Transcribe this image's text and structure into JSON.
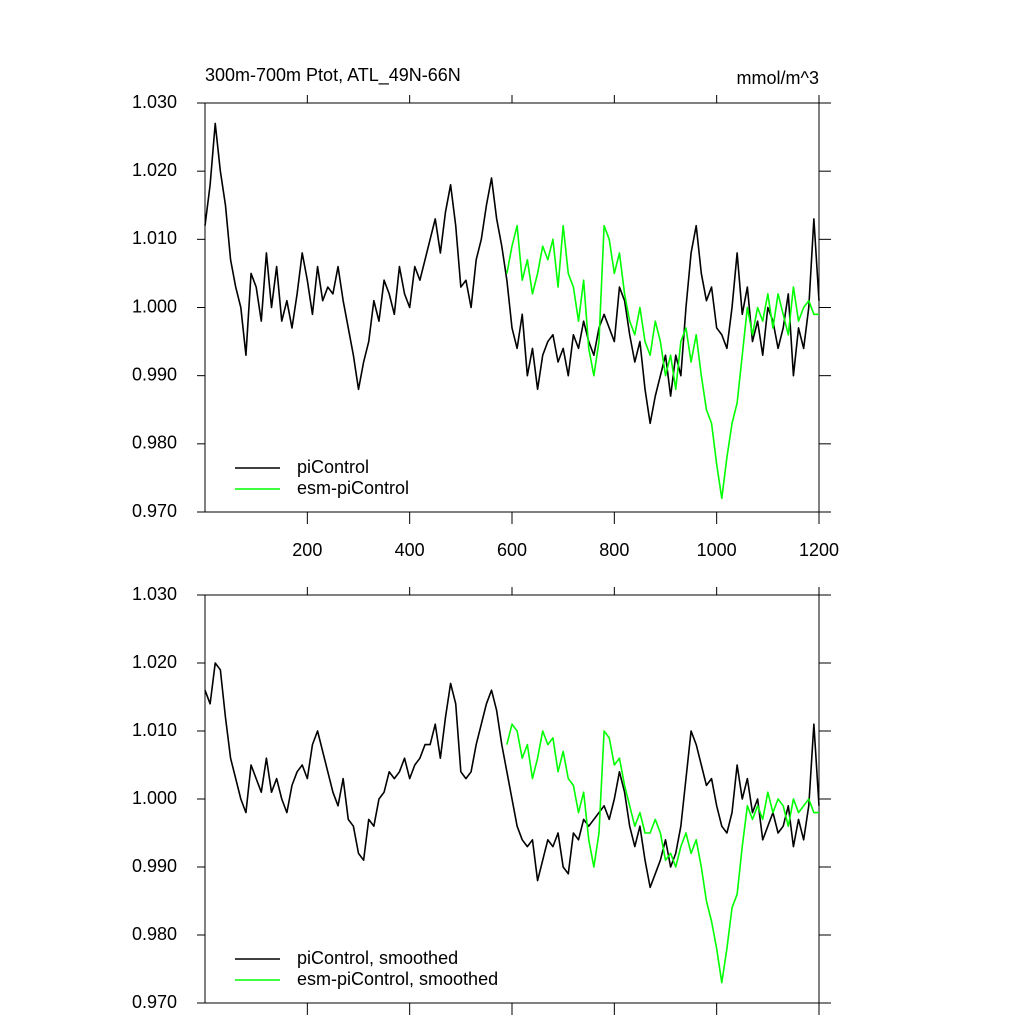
{
  "chart_data": [
    {
      "type": "line",
      "title": "300m-700m Ptot, ATL_49N-66N",
      "units": "mmol/m^3",
      "xlim": [
        0,
        1200
      ],
      "xticks": [
        200,
        400,
        600,
        800,
        1000,
        1200
      ],
      "xtick_labels": true,
      "ylim": [
        0.97,
        1.03
      ],
      "yticks": [
        {
          "value": 0.97,
          "label": "0.970"
        },
        {
          "value": 0.98,
          "label": "0.980"
        },
        {
          "value": 0.99,
          "label": "0.990"
        },
        {
          "value": 1.0,
          "label": "1.000"
        },
        {
          "value": 1.01,
          "label": "1.010"
        },
        {
          "value": 1.02,
          "label": "1.020"
        },
        {
          "value": 1.03,
          "label": "1.030"
        }
      ],
      "legend": "lower left",
      "series": [
        {
          "name": "piControl",
          "color": "#000000",
          "x": [
            0,
            10,
            20,
            30,
            40,
            50,
            60,
            70,
            80,
            90,
            100,
            110,
            120,
            130,
            140,
            150,
            160,
            170,
            180,
            190,
            200,
            210,
            220,
            230,
            240,
            250,
            260,
            270,
            280,
            290,
            300,
            310,
            320,
            330,
            340,
            350,
            360,
            370,
            380,
            390,
            400,
            410,
            420,
            430,
            440,
            450,
            460,
            470,
            480,
            490,
            500,
            510,
            520,
            530,
            540,
            550,
            560,
            570,
            580,
            590,
            600,
            610,
            620,
            630,
            640,
            650,
            660,
            670,
            680,
            690,
            700,
            710,
            720,
            730,
            740,
            750,
            760,
            770,
            780,
            790,
            800,
            810,
            820,
            830,
            840,
            850,
            860,
            870,
            880,
            890,
            900,
            910,
            920,
            930,
            940,
            950,
            960,
            970,
            980,
            990,
            1000,
            1010,
            1020,
            1030,
            1040,
            1050,
            1060,
            1070,
            1080,
            1090,
            1100,
            1110,
            1120,
            1130,
            1140,
            1150,
            1160,
            1170,
            1180,
            1190,
            1200
          ],
          "values": [
            1.012,
            1.018,
            1.027,
            1.02,
            1.015,
            1.007,
            1.003,
            1.0,
            0.993,
            1.005,
            1.003,
            0.998,
            1.008,
            1.0,
            1.006,
            0.998,
            1.001,
            0.997,
            1.002,
            1.008,
            1.004,
            0.999,
            1.006,
            1.001,
            1.003,
            1.002,
            1.006,
            1.001,
            0.997,
            0.993,
            0.988,
            0.992,
            0.995,
            1.001,
            0.998,
            1.004,
            1.002,
            0.999,
            1.006,
            1.002,
            1.0,
            1.006,
            1.004,
            1.007,
            1.01,
            1.013,
            1.008,
            1.014,
            1.018,
            1.012,
            1.003,
            1.004,
            1.0,
            1.007,
            1.01,
            1.015,
            1.019,
            1.013,
            1.009,
            1.004,
            0.997,
            0.994,
            0.999,
            0.99,
            0.994,
            0.988,
            0.993,
            0.995,
            0.996,
            0.992,
            0.994,
            0.99,
            0.996,
            0.994,
            0.998,
            0.995,
            0.993,
            0.997,
            0.999,
            0.997,
            0.995,
            1.003,
            1.001,
            0.996,
            0.992,
            0.995,
            0.988,
            0.983,
            0.987,
            0.99,
            0.993,
            0.987,
            0.993,
            0.99,
            1.0,
            1.008,
            1.012,
            1.005,
            1.001,
            1.003,
            0.997,
            0.996,
            0.994,
            1.0,
            1.008,
            0.999,
            1.003,
            0.995,
            0.998,
            0.993,
            1.0,
            0.998,
            0.994,
            0.997,
            1.002,
            0.99,
            0.997,
            0.994,
            1.0,
            1.013,
            1.001
          ]
        },
        {
          "name": "esm-piControl",
          "color": "#00ff00",
          "x": [
            590,
            600,
            610,
            620,
            630,
            640,
            650,
            660,
            670,
            680,
            690,
            700,
            710,
            720,
            730,
            740,
            750,
            760,
            770,
            780,
            790,
            800,
            810,
            820,
            830,
            840,
            850,
            860,
            870,
            880,
            890,
            900,
            910,
            920,
            930,
            940,
            950,
            960,
            970,
            980,
            990,
            1000,
            1010,
            1020,
            1030,
            1040,
            1050,
            1060,
            1070,
            1080,
            1090,
            1100,
            1110,
            1120,
            1130,
            1140,
            1150,
            1160,
            1170,
            1180,
            1190,
            1200
          ],
          "values": [
            1.005,
            1.009,
            1.012,
            1.004,
            1.007,
            1.002,
            1.005,
            1.009,
            1.007,
            1.01,
            1.003,
            1.012,
            1.005,
            1.003,
            0.998,
            1.004,
            0.994,
            0.99,
            0.995,
            1.012,
            1.01,
            1.005,
            1.008,
            1.002,
            0.998,
            0.996,
            1.0,
            0.995,
            0.993,
            0.998,
            0.995,
            0.99,
            0.993,
            0.988,
            0.995,
            0.997,
            0.992,
            0.996,
            0.99,
            0.985,
            0.983,
            0.977,
            0.972,
            0.978,
            0.983,
            0.986,
            0.993,
            1.0,
            0.996,
            1.0,
            0.998,
            1.002,
            0.997,
            1.002,
            0.999,
            0.996,
            1.003,
            0.998,
            1.0,
            1.001,
            0.999,
            0.999
          ]
        }
      ]
    },
    {
      "type": "line",
      "xlim": [
        0,
        1200
      ],
      "xticks": [
        200,
        400,
        600,
        800,
        1000,
        1200
      ],
      "xtick_labels": false,
      "ylim": [
        0.97,
        1.03
      ],
      "yticks": [
        {
          "value": 0.97,
          "label": "0.970"
        },
        {
          "value": 0.98,
          "label": "0.980"
        },
        {
          "value": 0.99,
          "label": "0.990"
        },
        {
          "value": 1.0,
          "label": "1.000"
        },
        {
          "value": 1.01,
          "label": "1.010"
        },
        {
          "value": 1.02,
          "label": "1.020"
        },
        {
          "value": 1.03,
          "label": "1.030"
        }
      ],
      "legend": "lower left",
      "series": [
        {
          "name": "piControl, smoothed",
          "color": "#000000",
          "x": [
            0,
            10,
            20,
            30,
            40,
            50,
            60,
            70,
            80,
            90,
            100,
            110,
            120,
            130,
            140,
            150,
            160,
            170,
            180,
            190,
            200,
            210,
            220,
            230,
            240,
            250,
            260,
            270,
            280,
            290,
            300,
            310,
            320,
            330,
            340,
            350,
            360,
            370,
            380,
            390,
            400,
            410,
            420,
            430,
            440,
            450,
            460,
            470,
            480,
            490,
            500,
            510,
            520,
            530,
            540,
            550,
            560,
            570,
            580,
            590,
            600,
            610,
            620,
            630,
            640,
            650,
            660,
            670,
            680,
            690,
            700,
            710,
            720,
            730,
            740,
            750,
            760,
            770,
            780,
            790,
            800,
            810,
            820,
            830,
            840,
            850,
            860,
            870,
            880,
            890,
            900,
            910,
            920,
            930,
            940,
            950,
            960,
            970,
            980,
            990,
            1000,
            1010,
            1020,
            1030,
            1040,
            1050,
            1060,
            1070,
            1080,
            1090,
            1100,
            1110,
            1120,
            1130,
            1140,
            1150,
            1160,
            1170,
            1180,
            1190,
            1200
          ],
          "values": [
            1.016,
            1.014,
            1.02,
            1.019,
            1.012,
            1.006,
            1.003,
            1.0,
            0.998,
            1.005,
            1.003,
            1.001,
            1.006,
            1.001,
            1.003,
            1.0,
            0.998,
            1.002,
            1.004,
            1.005,
            1.003,
            1.008,
            1.01,
            1.007,
            1.004,
            1.001,
            0.999,
            1.003,
            0.997,
            0.996,
            0.992,
            0.991,
            0.997,
            0.996,
            1.0,
            1.001,
            1.004,
            1.003,
            1.004,
            1.006,
            1.003,
            1.005,
            1.006,
            1.008,
            1.008,
            1.011,
            1.006,
            1.012,
            1.017,
            1.014,
            1.004,
            1.003,
            1.004,
            1.008,
            1.011,
            1.014,
            1.016,
            1.013,
            1.008,
            1.004,
            1.0,
            0.996,
            0.994,
            0.993,
            0.994,
            0.988,
            0.991,
            0.994,
            0.993,
            0.995,
            0.99,
            0.989,
            0.995,
            0.994,
            0.997,
            0.996,
            0.997,
            0.998,
            0.999,
            0.997,
            1.0,
            1.004,
            1.001,
            0.996,
            0.993,
            0.996,
            0.991,
            0.987,
            0.989,
            0.991,
            0.994,
            0.99,
            0.992,
            0.996,
            1.003,
            1.01,
            1.008,
            1.005,
            1.002,
            1.003,
            0.999,
            0.996,
            0.995,
            0.998,
            1.005,
            1.0,
            1.003,
            0.998,
            1.0,
            0.994,
            0.996,
            0.998,
            0.995,
            0.996,
            0.999,
            0.993,
            0.997,
            0.994,
            0.999,
            1.011,
            0.999
          ]
        },
        {
          "name": "esm-piControl, smoothed",
          "color": "#00ff00",
          "x": [
            590,
            600,
            610,
            620,
            630,
            640,
            650,
            660,
            670,
            680,
            690,
            700,
            710,
            720,
            730,
            740,
            750,
            760,
            770,
            780,
            790,
            800,
            810,
            820,
            830,
            840,
            850,
            860,
            870,
            880,
            890,
            900,
            910,
            920,
            930,
            940,
            950,
            960,
            970,
            980,
            990,
            1000,
            1010,
            1020,
            1030,
            1040,
            1050,
            1060,
            1070,
            1080,
            1090,
            1100,
            1110,
            1120,
            1130,
            1140,
            1150,
            1160,
            1170,
            1180,
            1190,
            1200
          ],
          "values": [
            1.008,
            1.011,
            1.01,
            1.006,
            1.008,
            1.003,
            1.006,
            1.01,
            1.008,
            1.009,
            1.004,
            1.007,
            1.003,
            1.002,
            0.998,
            1.001,
            0.994,
            0.99,
            0.995,
            1.01,
            1.009,
            1.005,
            1.006,
            1.002,
            0.999,
            0.996,
            0.998,
            0.995,
            0.995,
            0.997,
            0.995,
            0.991,
            0.992,
            0.99,
            0.993,
            0.995,
            0.992,
            0.994,
            0.99,
            0.985,
            0.982,
            0.978,
            0.973,
            0.978,
            0.984,
            0.986,
            0.993,
            0.999,
            0.997,
            0.999,
            0.997,
            1.001,
            0.998,
            1.0,
            0.999,
            0.996,
            1.0,
            0.998,
            0.999,
            1.0,
            0.998,
            0.998
          ]
        }
      ]
    }
  ]
}
